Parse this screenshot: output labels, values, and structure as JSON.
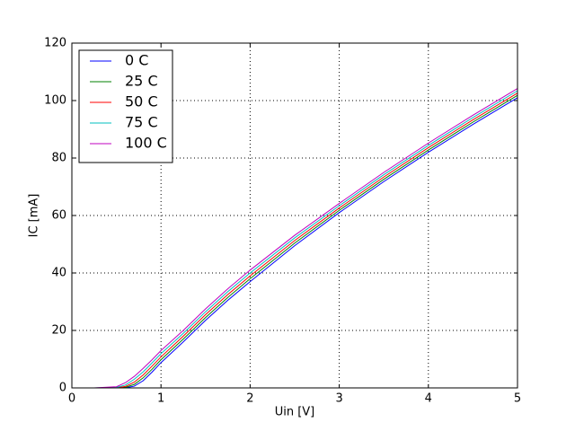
{
  "chart_data": {
    "type": "line",
    "xlabel": "Uin [V]",
    "ylabel": "IC [mA]",
    "x": [
      0,
      0.25,
      0.5,
      0.6,
      0.7,
      0.8,
      0.9,
      1.0,
      1.25,
      1.5,
      1.75,
      2,
      2.5,
      3,
      3.5,
      4,
      4.5,
      5
    ],
    "series": [
      {
        "name": "0 C",
        "color": "#0000ff",
        "values": [
          0,
          0,
          0,
          0.05,
          0.6,
          2.5,
          5.5,
          8.8,
          16,
          23.5,
          30.5,
          37,
          49.5,
          61,
          71.8,
          82,
          91.7,
          101
        ]
      },
      {
        "name": "25 C",
        "color": "#008000",
        "values": [
          0,
          0,
          0,
          0.2,
          1.2,
          3.5,
          6.5,
          9.8,
          17,
          24.5,
          31.5,
          38,
          50.4,
          61.8,
          72.6,
          82.8,
          92.5,
          101.8
        ]
      },
      {
        "name": "50 C",
        "color": "#ff0000",
        "values": [
          0,
          0,
          0.05,
          0.5,
          2,
          4.5,
          7.6,
          10.8,
          18,
          25.5,
          32.5,
          39,
          51.3,
          62.6,
          73.4,
          83.6,
          93.3,
          102.6
        ]
      },
      {
        "name": "75 C",
        "color": "#00bfbf",
        "values": [
          0,
          0,
          0.15,
          1,
          3,
          5.6,
          8.7,
          11.9,
          19,
          26.5,
          33.5,
          40,
          52.2,
          63.4,
          74.2,
          84.4,
          94.1,
          103.4
        ]
      },
      {
        "name": "100 C",
        "color": "#bf00bf",
        "values": [
          0,
          0,
          0.4,
          1.8,
          4,
          6.8,
          9.8,
          13,
          20,
          27.5,
          34.5,
          41,
          53.1,
          64.2,
          75,
          85.2,
          94.9,
          104.2
        ]
      }
    ],
    "xlim": [
      0,
      5
    ],
    "xticks": [
      0,
      1,
      2,
      3,
      4,
      5
    ],
    "ylim": [
      0,
      120
    ],
    "yticks": [
      0,
      20,
      40,
      60,
      80,
      100,
      120
    ],
    "grid": true,
    "legend": "upper left"
  }
}
